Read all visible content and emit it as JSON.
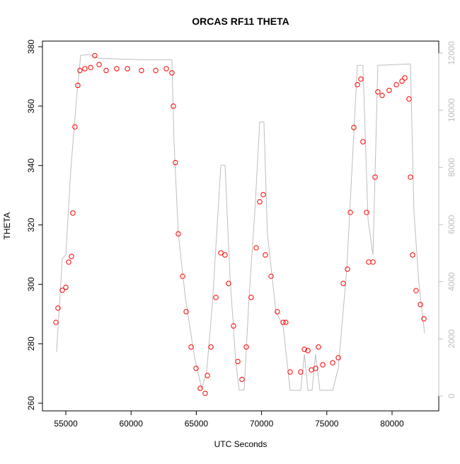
{
  "chart_data": {
    "type": "scatter",
    "title": "ORCAS RF11 THETA",
    "x_label": "UTC Seconds",
    "y_label": "THETA",
    "xlim": [
      53210,
      83580
    ],
    "ylim": [
      257.4,
      381.9
    ],
    "y2lim": [
      -520,
      12420
    ],
    "xticks": [
      55000,
      60000,
      65000,
      70000,
      75000,
      80000
    ],
    "yticks": [
      260,
      280,
      300,
      320,
      340,
      360,
      380
    ],
    "y2ticks": [
      0,
      2000,
      4000,
      6000,
      8000,
      10000,
      12000
    ],
    "series": [
      {
        "type": "scatter",
        "color": "#ff0000",
        "x": [
          54240,
          54400,
          54730,
          55000,
          55220,
          55430,
          55540,
          55700,
          55920,
          56080,
          56460,
          56900,
          57220,
          57550,
          58090,
          58900,
          59720,
          60800,
          61890,
          62700,
          63130,
          63240,
          63400,
          63620,
          63950,
          64220,
          64600,
          64980,
          65300,
          65680,
          65850,
          66120,
          66500,
          66880,
          67200,
          67470,
          67850,
          68180,
          68500,
          68830,
          69200,
          69590,
          69860,
          70130,
          70290,
          70730,
          71210,
          71650,
          71860,
          72190,
          73000,
          73280,
          73550,
          73820,
          74140,
          74360,
          74690,
          75450,
          75880,
          76260,
          76580,
          76800,
          77070,
          77340,
          77610,
          77770,
          78050,
          78210,
          78540,
          78700,
          78910,
          79240,
          79780,
          80330,
          80760,
          80980,
          81300,
          81410,
          81570,
          81840,
          82170,
          82440
        ],
        "values": [
          287.2,
          292,
          298,
          299,
          307.5,
          309.4,
          324,
          353,
          367,
          372,
          372.6,
          373,
          377,
          374,
          372,
          372.6,
          372.6,
          372,
          372,
          372.6,
          371.2,
          360,
          341,
          317,
          302.7,
          290.8,
          278.9,
          271.7,
          265,
          263.3,
          269.3,
          278.9,
          295.6,
          310.6,
          309.9,
          300.3,
          286,
          274,
          268,
          278.9,
          295.6,
          312.3,
          327.8,
          330.2,
          309.9,
          302.7,
          290.8,
          287.2,
          287.2,
          270.5,
          270.5,
          278.1,
          277.7,
          271.2,
          271.7,
          278.9,
          272.9,
          273.6,
          275.3,
          300.3,
          305.1,
          324.2,
          352.8,
          367.2,
          369.1,
          348,
          324.2,
          307.5,
          307.5,
          336.1,
          364.8,
          363.6,
          365.3,
          367.2,
          368.4,
          369.5,
          362.4,
          336.1,
          309.9,
          297.9,
          293.2,
          288.4
        ]
      },
      {
        "type": "line",
        "color": "#bebebe",
        "axis": "y2",
        "x": [
          54290,
          54730,
          55000,
          55380,
          55810,
          56140,
          56740,
          57550,
          58630,
          60800,
          63130,
          63290,
          63620,
          64160,
          64870,
          65410,
          65790,
          66230,
          66880,
          67200,
          67580,
          68020,
          68290,
          68670,
          69040,
          69480,
          69860,
          70180,
          70450,
          71100,
          71650,
          72190,
          73000,
          73280,
          73550,
          73870,
          74140,
          74470,
          75450,
          75880,
          76530,
          77340,
          77770,
          78160,
          78540,
          78910,
          81410,
          81680,
          82060,
          82490
        ],
        "values": [
          1540,
          4810,
          4930,
          7900,
          10380,
          11920,
          11950,
          11820,
          11800,
          11770,
          11770,
          8900,
          5680,
          3440,
          1340,
          270,
          840,
          3200,
          8080,
          8080,
          4190,
          1210,
          200,
          220,
          3440,
          6420,
          9590,
          9590,
          5680,
          2950,
          2450,
          200,
          200,
          1460,
          200,
          200,
          1460,
          200,
          200,
          970,
          4440,
          11570,
          11570,
          6170,
          4930,
          11570,
          11620,
          6420,
          3940,
          2200
        ]
      }
    ]
  }
}
